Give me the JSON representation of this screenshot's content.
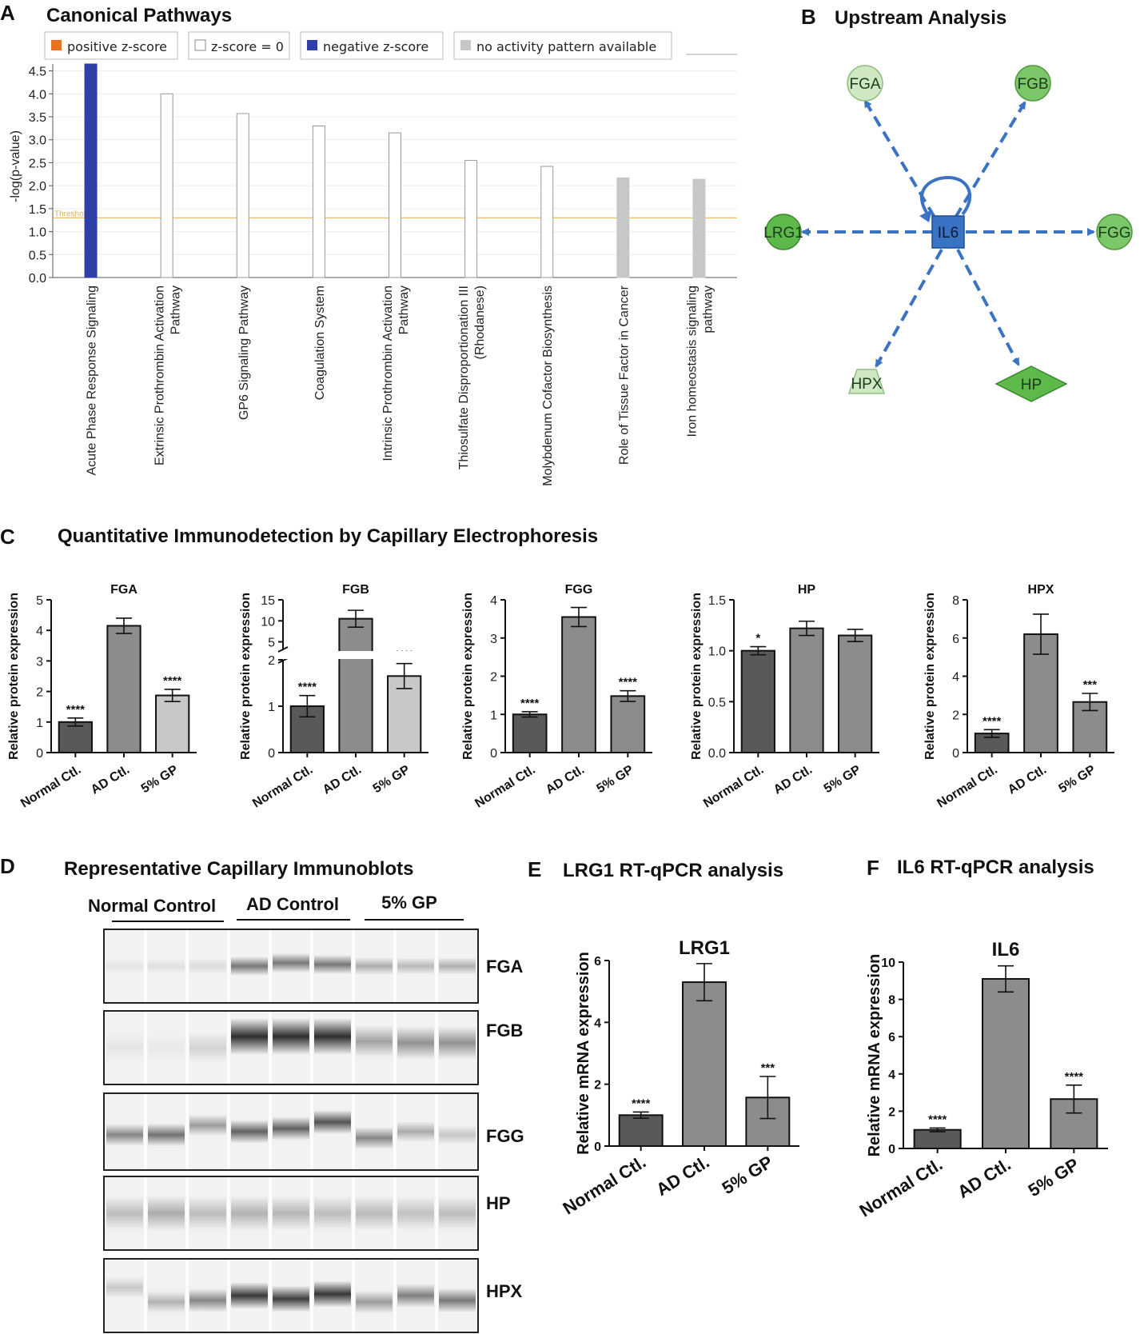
{
  "colors": {
    "positive": "#e8701e",
    "zero": "#ffffff",
    "negative": "#2e3fa8",
    "na": "#c7c7c7",
    "threshold": "#e8c060",
    "network_blue": "#3a72c4",
    "node_green_light": "#cfe8c3",
    "node_green": "#7cc767",
    "node_green_dark": "#5cb94a",
    "bar_dark": "#595959",
    "bar_mid": "#8c8c8c",
    "bar_light": "#c8c8c8"
  },
  "panel_a": {
    "letter": "A",
    "title": "Canonical Pathways",
    "legend": [
      {
        "label": "positive z-score",
        "color": "positive"
      },
      {
        "label": "z-score = 0",
        "color": "zero"
      },
      {
        "label": "negative z-score",
        "color": "negative"
      },
      {
        "label": "no activity pattern available",
        "color": "na"
      }
    ],
    "threshold_label": "Threshold",
    "chart_data": {
      "type": "bar",
      "title": "Canonical Pathways",
      "ylabel": "-log(p-value)",
      "ylim": [
        0,
        4.65
      ],
      "yticks": [
        0.0,
        0.5,
        1.0,
        1.5,
        2.0,
        2.5,
        3.0,
        3.5,
        4.0,
        4.5
      ],
      "ytick_labels": [
        "0.0",
        "0.5",
        "1.0",
        "1.5",
        "2.0",
        "2.5",
        "3.0",
        "3.5",
        "4.0",
        "4.5"
      ],
      "threshold": 1.3,
      "categories": [
        [
          "Acute Phase Response Signaling"
        ],
        [
          "Extrinsic Prothrombin Activation",
          "Pathway"
        ],
        [
          "GP6 Signaling Pathway"
        ],
        [
          "Coagulation System"
        ],
        [
          "Intrinsic Prothrombin Activation",
          "Pathway"
        ],
        [
          "Thiosulfate Disproportionation III",
          "(Rhodanese)"
        ],
        [
          "Molybdenum Cofactor Biosynthesis"
        ],
        [
          "Role of Tissue Factor in Cancer"
        ],
        [
          "Iron homeostasis signaling",
          "pathway"
        ]
      ],
      "values": [
        4.65,
        4.0,
        3.57,
        3.3,
        3.15,
        2.55,
        2.42,
        2.17,
        2.14
      ],
      "bar_colors": [
        "negative",
        "zero",
        "zero",
        "zero",
        "zero",
        "zero",
        "zero",
        "na",
        "na"
      ]
    }
  },
  "panel_b": {
    "letter": "B",
    "title": "Upstream Analysis",
    "center": "IL6",
    "targets": [
      "FGA",
      "FGB",
      "LRG1",
      "FGG",
      "HPX",
      "HP"
    ]
  },
  "panel_c": {
    "letter": "C",
    "title": "Quantitative Immunodetection by Capillary Electrophoresis",
    "ylabel": "Relative protein expression",
    "categories": [
      "Normal Ctl.",
      "AD Ctl.",
      "5% GP"
    ],
    "chart_data": [
      {
        "type": "bar",
        "title": "FGA",
        "ylim": [
          0,
          5
        ],
        "yticks": [
          0,
          1,
          2,
          3,
          4,
          5
        ],
        "ytick_labels": [
          "0",
          "1",
          "2",
          "3",
          "4",
          "5"
        ],
        "values": [
          1.0,
          4.15,
          1.87
        ],
        "errors": [
          0.13,
          0.25,
          0.2
        ],
        "significance": [
          "****",
          "",
          "****"
        ],
        "bar_colors": [
          "bar_dark",
          "bar_mid",
          "bar_light"
        ]
      },
      {
        "type": "bar",
        "title": "FGB",
        "broken_axis": true,
        "lower_range": [
          0,
          2
        ],
        "upper_range": [
          3,
          15
        ],
        "lower_ticks": [
          0,
          1,
          2
        ],
        "lower_tick_labels": [
          "0",
          "1",
          "2"
        ],
        "upper_ticks": [
          5,
          10,
          15
        ],
        "upper_tick_labels": [
          "5",
          "10",
          "15"
        ],
        "values": [
          1.0,
          10.5,
          1.65
        ],
        "errors": [
          0.23,
          2.0,
          0.27
        ],
        "significance": [
          "****",
          "",
          "****"
        ],
        "bar_colors": [
          "bar_dark",
          "bar_mid",
          "bar_light"
        ]
      },
      {
        "type": "bar",
        "title": "FGG",
        "ylim": [
          0,
          4
        ],
        "yticks": [
          0,
          1,
          2,
          3,
          4
        ],
        "ytick_labels": [
          "0",
          "1",
          "2",
          "3",
          "4"
        ],
        "values": [
          1.0,
          3.55,
          1.48
        ],
        "errors": [
          0.07,
          0.25,
          0.14
        ],
        "significance": [
          "****",
          "",
          "****"
        ],
        "bar_colors": [
          "bar_dark",
          "bar_mid",
          "bar_mid"
        ]
      },
      {
        "type": "bar",
        "title": "HP",
        "ylim": [
          0,
          1.5
        ],
        "yticks": [
          0,
          0.5,
          1.0,
          1.5
        ],
        "ytick_labels": [
          "0.0",
          "0.5",
          "1.0",
          "1.5"
        ],
        "values": [
          1.0,
          1.22,
          1.15
        ],
        "errors": [
          0.04,
          0.07,
          0.06
        ],
        "significance": [
          "*",
          "",
          ""
        ],
        "bar_colors": [
          "bar_dark",
          "bar_mid",
          "bar_mid"
        ]
      },
      {
        "type": "bar",
        "title": "HPX",
        "ylim": [
          0,
          8
        ],
        "yticks": [
          0,
          2,
          4,
          6,
          8
        ],
        "ytick_labels": [
          "0",
          "2",
          "4",
          "6",
          "8"
        ],
        "values": [
          1.0,
          6.2,
          2.65
        ],
        "errors": [
          0.2,
          1.05,
          0.45
        ],
        "significance": [
          "****",
          "",
          "***"
        ],
        "bar_colors": [
          "bar_dark",
          "bar_mid",
          "bar_mid"
        ]
      }
    ]
  },
  "panel_d": {
    "letter": "D",
    "title": "Representative Capillary Immunoblots",
    "groups": [
      "Normal Control",
      "AD Control",
      "5% GP"
    ],
    "rows": [
      {
        "label": "FGA",
        "intensity": [
          0.12,
          0.14,
          0.16,
          0.62,
          0.62,
          0.62,
          0.38,
          0.32,
          0.36
        ],
        "offset": [
          0,
          0,
          0,
          0,
          -4,
          -2,
          0,
          0,
          0
        ],
        "height": 18
      },
      {
        "label": "FGB",
        "intensity": [
          0.12,
          0.1,
          0.2,
          0.95,
          0.95,
          0.95,
          0.42,
          0.5,
          0.5
        ],
        "offset": [
          0,
          0,
          0,
          -14,
          -14,
          -14,
          -8,
          -6,
          -6
        ],
        "height": 36
      },
      {
        "label": "FGG",
        "intensity": [
          0.55,
          0.65,
          0.45,
          0.72,
          0.72,
          0.78,
          0.55,
          0.38,
          0.26
        ],
        "offset": [
          4,
          4,
          -8,
          0,
          -4,
          -12,
          8,
          0,
          4
        ],
        "height": 22
      },
      {
        "label": "HP",
        "intensity": [
          0.3,
          0.38,
          0.3,
          0.35,
          0.33,
          0.3,
          0.32,
          0.28,
          0.3
        ],
        "offset": [
          0,
          0,
          0,
          0,
          0,
          0,
          0,
          0,
          0
        ],
        "height": 40
      },
      {
        "label": "HPX",
        "intensity": [
          0.25,
          0.35,
          0.55,
          0.9,
          0.88,
          0.92,
          0.45,
          0.58,
          0.62
        ],
        "offset": [
          -10,
          8,
          6,
          0,
          4,
          -2,
          8,
          0,
          6
        ],
        "height": 24
      }
    ]
  },
  "panel_e": {
    "letter": "E",
    "title": "LRG1 RT-qPCR analysis",
    "chart_data": {
      "type": "bar",
      "title": "LRG1",
      "ylabel": "Relative mRNA expression",
      "categories": [
        "Normal Ctl.",
        "AD Ctl.",
        "5% GP"
      ],
      "ylim": [
        0,
        6
      ],
      "yticks": [
        0,
        2,
        4,
        6
      ],
      "ytick_labels": [
        "0",
        "2",
        "4",
        "6"
      ],
      "values": [
        1.0,
        5.3,
        1.57
      ],
      "errors": [
        0.1,
        0.6,
        0.68
      ],
      "significance": [
        "****",
        "",
        "***"
      ],
      "bar_colors": [
        "bar_dark",
        "bar_mid",
        "bar_mid"
      ]
    }
  },
  "panel_f": {
    "letter": "F",
    "title": "IL6 RT-qPCR analysis",
    "chart_data": {
      "type": "bar",
      "title": "IL6",
      "ylabel": "Relative mRNA expression",
      "categories": [
        "Normal Ctl.",
        "AD Ctl.",
        "5% GP"
      ],
      "ylim": [
        0,
        10
      ],
      "yticks": [
        0,
        2,
        4,
        6,
        8,
        10
      ],
      "ytick_labels": [
        "0",
        "2",
        "4",
        "6",
        "8",
        "10"
      ],
      "values": [
        1.0,
        9.1,
        2.65
      ],
      "errors": [
        0.1,
        0.7,
        0.75
      ],
      "significance": [
        "****",
        "",
        "****"
      ],
      "bar_colors": [
        "bar_dark",
        "bar_mid",
        "bar_mid"
      ]
    }
  }
}
